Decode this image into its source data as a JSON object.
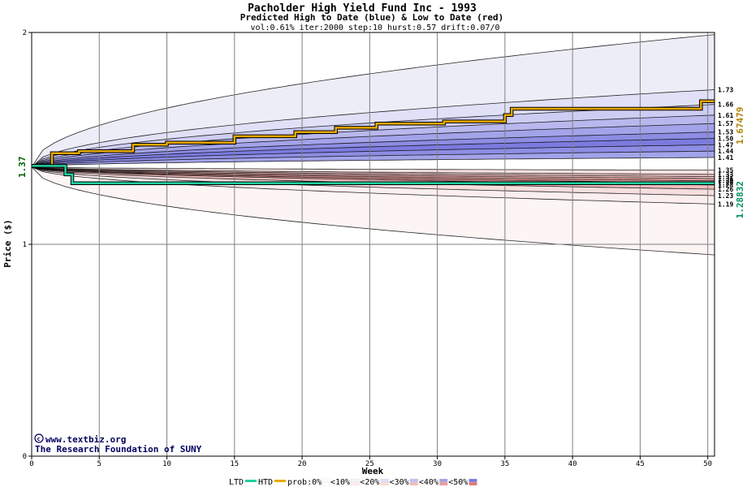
{
  "chart_data": {
    "type": "line",
    "title": "Pacholder High Yield Fund Inc - 1993",
    "subtitle": "Predicted High to Date (blue) &  Low to Date (red)",
    "params": "vol:0.61% iter:2000 step:10 hurst:0.57 drift:0.07/0",
    "xlabel": "Week",
    "ylabel": "Price ($)",
    "xlim": [
      0,
      50.5
    ],
    "ylim": [
      0,
      2
    ],
    "x_ticks": [
      0,
      5,
      10,
      15,
      20,
      25,
      30,
      35,
      40,
      45,
      50
    ],
    "y_ticks": [
      0,
      1,
      2
    ],
    "start_value": "1.37",
    "start_price": 1.365,
    "right_high_value": "1.67479",
    "right_low_value": "1.28832",
    "high_color": "#b08000",
    "low_color": "#009060",
    "right_labels_high": [
      "1.73",
      "1.66",
      "1.61",
      "1.57",
      "1.53",
      "1.50",
      "1.47",
      "1.44",
      "1.41"
    ],
    "right_labels_low": [
      "1.35",
      "1.33",
      "1.32",
      "1.31",
      "1.30",
      "1.29",
      "1.28",
      "1.26",
      "1.23",
      "1.19"
    ],
    "high_band_ends": [
      1.99,
      1.73,
      1.66,
      1.61,
      1.57,
      1.53,
      1.5,
      1.47,
      1.44,
      1.41
    ],
    "low_band_ends": [
      1.35,
      1.33,
      1.32,
      1.31,
      1.3,
      1.29,
      1.28,
      1.26,
      1.23,
      1.19,
      0.95
    ],
    "blue_band_colors": [
      "#ededf8",
      "#e0e0f6",
      "#cdcdf4",
      "#b8b8ee",
      "#a3a3ea",
      "#8d8de4",
      "#7b7bdf",
      "#8d8de4",
      "#a3a3ea"
    ],
    "red_band_colors": [
      "#f6e0e0",
      "#f2cece",
      "#efbcbc",
      "#ecabab",
      "#e89c9c",
      "#e89c9c",
      "#efbcbc",
      "#f6dede",
      "#fbeeee",
      "#fdf4f4"
    ],
    "series": [
      {
        "name": "HTD",
        "color": "#e8a800",
        "x": [
          0,
          1.5,
          1.5,
          3.5,
          3.5,
          7.5,
          7.5,
          10.0,
          10.0,
          15.0,
          15.0,
          19.5,
          19.5,
          22.5,
          22.5,
          25.5,
          25.5,
          30.5,
          30.5,
          35.0,
          35.0,
          35.5,
          35.5,
          49.5,
          49.5,
          50.5
        ],
        "y": [
          1.37,
          1.37,
          1.43,
          1.43,
          1.44,
          1.44,
          1.47,
          1.47,
          1.48,
          1.48,
          1.51,
          1.51,
          1.53,
          1.53,
          1.55,
          1.55,
          1.57,
          1.57,
          1.58,
          1.58,
          1.61,
          1.61,
          1.64,
          1.64,
          1.675,
          1.675
        ]
      },
      {
        "name": "LTD",
        "color": "#20d0a0",
        "x": [
          0,
          2.5,
          2.5,
          3.0,
          3.0,
          50.5
        ],
        "y": [
          1.37,
          1.37,
          1.33,
          1.33,
          1.288,
          1.288
        ]
      }
    ],
    "legend": {
      "ltd": "LTD",
      "htd": "HTD",
      "prob": "prob:0%",
      "items": [
        "<10%",
        "<20%",
        "<30%",
        "<40%",
        "<50%"
      ],
      "swatch_colors": [
        [
          "#ffffff",
          "#ffffff"
        ],
        [
          "#f4f4fb",
          "#fbeeee"
        ],
        [
          "#dedef6",
          "#f6dede"
        ],
        [
          "#c0c0ee",
          "#efbcbc"
        ],
        [
          "#a0a0e6",
          "#e89c9c"
        ],
        [
          "#7878dc",
          "#e07878"
        ]
      ]
    }
  },
  "credits": {
    "copyright": "www.textbiz.org",
    "org": "The Research Foundation of SUNY"
  }
}
